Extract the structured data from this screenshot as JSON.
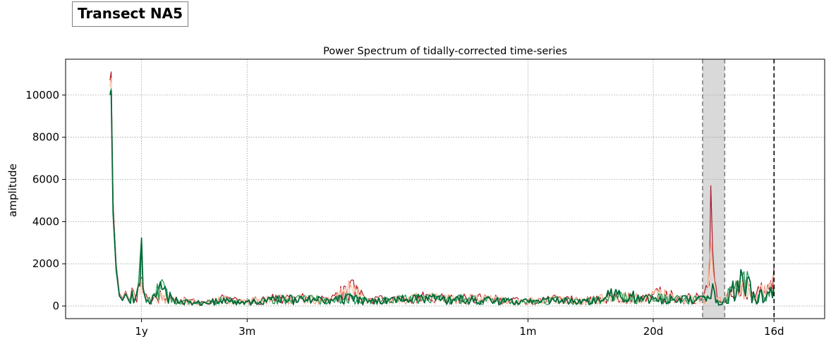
{
  "badge": {
    "text": "Transect NA5"
  },
  "chart_data": {
    "type": "line",
    "title": "Power Spectrum of tidally-corrected time-series",
    "xlabel": "",
    "ylabel": "amplitude",
    "xlim": [
      -0.12,
      1.08
    ],
    "ylim": [
      -600,
      11700
    ],
    "x_ticks": [
      {
        "pos": 0.0,
        "label": "1y"
      },
      {
        "pos": 0.167,
        "label": "3m"
      },
      {
        "pos": 0.611,
        "label": "1m"
      },
      {
        "pos": 0.809,
        "label": "20d"
      },
      {
        "pos": 1.0,
        "label": "16d"
      }
    ],
    "y_ticks": [
      0,
      2000,
      4000,
      6000,
      8000,
      10000
    ],
    "grid": true,
    "shaded_band": [
      0.887,
      0.922
    ],
    "vlines": [
      {
        "x": 0.887,
        "style": "dashed",
        "color": "#808080"
      },
      {
        "x": 0.922,
        "style": "dashed",
        "color": "#808080"
      },
      {
        "x": 1.0,
        "style": "dashed",
        "color": "#000000"
      }
    ],
    "colors": {
      "band": "#d9d9d9",
      "grid": "#9a9a9a"
    },
    "series": [
      {
        "color": "#b2182b",
        "x": [
          -0.05,
          -0.048,
          -0.045,
          -0.04,
          -0.035,
          -0.03,
          -0.025,
          -0.02,
          -0.015,
          -0.01,
          -0.005,
          0.0,
          0.005,
          0.01,
          0.03,
          0.05,
          0.07,
          0.1,
          0.13,
          0.16,
          0.2,
          0.25,
          0.3,
          0.33,
          0.36,
          0.4,
          0.45,
          0.5,
          0.55,
          0.6,
          0.65,
          0.7,
          0.75,
          0.8,
          0.82,
          0.85,
          0.88,
          0.895,
          0.9,
          0.903,
          0.906,
          0.91,
          0.92,
          0.93,
          0.95,
          0.96,
          0.97,
          0.98,
          0.99,
          0.995,
          1.0
        ],
        "y": [
          10700,
          11100,
          5000,
          2000,
          600,
          350,
          700,
          300,
          850,
          400,
          1100,
          1350,
          600,
          350,
          700,
          400,
          350,
          200,
          450,
          250,
          450,
          500,
          400,
          1150,
          350,
          450,
          550,
          500,
          450,
          300,
          450,
          350,
          600,
          500,
          900,
          450,
          500,
          850,
          5700,
          2600,
          1200,
          400,
          300,
          900,
          1200,
          1000,
          400,
          1100,
          1000,
          1200,
          1900
        ]
      },
      {
        "color": "#f4a582",
        "x": [
          -0.05,
          -0.048,
          -0.045,
          -0.04,
          -0.035,
          -0.03,
          -0.025,
          -0.02,
          -0.015,
          -0.01,
          -0.005,
          0.0,
          0.005,
          0.01,
          0.03,
          0.05,
          0.07,
          0.1,
          0.13,
          0.16,
          0.2,
          0.25,
          0.3,
          0.33,
          0.36,
          0.4,
          0.45,
          0.5,
          0.55,
          0.6,
          0.65,
          0.7,
          0.75,
          0.8,
          0.82,
          0.85,
          0.88,
          0.895,
          0.9,
          0.903,
          0.906,
          0.91,
          0.92,
          0.93,
          0.95,
          0.96,
          0.97,
          0.98,
          0.99,
          0.995,
          1.0
        ],
        "y": [
          10400,
          10800,
          4800,
          1900,
          550,
          320,
          650,
          280,
          800,
          380,
          1050,
          1300,
          560,
          320,
          650,
          380,
          330,
          190,
          420,
          240,
          430,
          470,
          380,
          1000,
          330,
          430,
          520,
          480,
          430,
          290,
          430,
          340,
          570,
          480,
          800,
          430,
          470,
          700,
          3000,
          1800,
          1000,
          380,
          290,
          850,
          1150,
          950,
          380,
          1000,
          900,
          1100,
          1600
        ]
      },
      {
        "color": "#fddbc7",
        "x": [
          -0.05,
          -0.048,
          -0.045,
          -0.04,
          -0.035,
          -0.03,
          -0.025,
          -0.02,
          -0.015,
          -0.01,
          -0.005,
          0.0,
          0.005,
          0.01,
          0.03,
          0.05,
          0.07,
          0.1,
          0.13,
          0.16,
          0.2,
          0.25,
          0.3,
          0.33,
          0.36,
          0.4,
          0.45,
          0.5,
          0.55,
          0.6,
          0.65,
          0.7,
          0.75,
          0.8,
          0.82,
          0.85,
          0.88,
          0.895,
          0.9,
          0.903,
          0.906,
          0.91,
          0.92,
          0.93,
          0.95,
          0.96,
          0.97,
          0.98,
          0.99,
          0.995,
          1.0
        ],
        "y": [
          10300,
          10600,
          4700,
          1850,
          520,
          300,
          630,
          270,
          780,
          370,
          1020,
          1280,
          540,
          310,
          630,
          370,
          320,
          185,
          410,
          230,
          420,
          460,
          370,
          900,
          320,
          420,
          510,
          470,
          420,
          280,
          420,
          330,
          560,
          470,
          750,
          420,
          460,
          650,
          2200,
          1500,
          950,
          370,
          280,
          830,
          1120,
          930,
          370,
          950,
          850,
          1050,
          1400
        ]
      },
      {
        "color": "#1a9850",
        "x": [
          -0.05,
          -0.048,
          -0.045,
          -0.04,
          -0.035,
          -0.03,
          -0.025,
          -0.02,
          -0.015,
          -0.01,
          -0.005,
          0.0,
          0.005,
          0.01,
          0.03,
          0.05,
          0.07,
          0.1,
          0.13,
          0.16,
          0.2,
          0.25,
          0.3,
          0.33,
          0.36,
          0.4,
          0.45,
          0.5,
          0.55,
          0.6,
          0.65,
          0.7,
          0.75,
          0.8,
          0.82,
          0.85,
          0.88,
          0.895,
          0.9,
          0.903,
          0.906,
          0.91,
          0.92,
          0.93,
          0.95,
          0.96,
          0.97,
          0.98,
          0.99,
          0.995,
          1.0
        ],
        "y": [
          10100,
          10300,
          4500,
          1800,
          500,
          280,
          600,
          250,
          750,
          350,
          1000,
          3250,
          500,
          300,
          1100,
          350,
          300,
          180,
          400,
          220,
          400,
          450,
          350,
          600,
          300,
          400,
          500,
          450,
          400,
          270,
          400,
          320,
          550,
          450,
          500,
          400,
          450,
          500,
          400,
          1000,
          700,
          300,
          250,
          800,
          1450,
          1350,
          350,
          800,
          700,
          900,
          1000
        ]
      },
      {
        "color": "#006837",
        "x": [
          -0.05,
          -0.048,
          -0.045,
          -0.04,
          -0.035,
          -0.03,
          -0.025,
          -0.02,
          -0.015,
          -0.01,
          -0.005,
          0.0,
          0.005,
          0.01,
          0.03,
          0.05,
          0.07,
          0.1,
          0.13,
          0.16,
          0.2,
          0.25,
          0.3,
          0.33,
          0.36,
          0.4,
          0.45,
          0.5,
          0.55,
          0.6,
          0.65,
          0.7,
          0.75,
          0.8,
          0.82,
          0.85,
          0.88,
          0.895,
          0.9,
          0.903,
          0.906,
          0.91,
          0.92,
          0.93,
          0.95,
          0.96,
          0.97,
          0.98,
          0.99,
          0.995,
          1.0
        ],
        "y": [
          10000,
          10200,
          4400,
          1700,
          480,
          260,
          580,
          240,
          720,
          330,
          980,
          3200,
          480,
          280,
          1150,
          330,
          290,
          170,
          380,
          210,
          390,
          430,
          330,
          500,
          290,
          380,
          480,
          430,
          380,
          260,
          380,
          300,
          780,
          430,
          450,
          380,
          430,
          450,
          350,
          1050,
          650,
          280,
          230,
          780,
          1480,
          1380,
          330,
          750,
          650,
          850,
          900
        ]
      }
    ]
  }
}
